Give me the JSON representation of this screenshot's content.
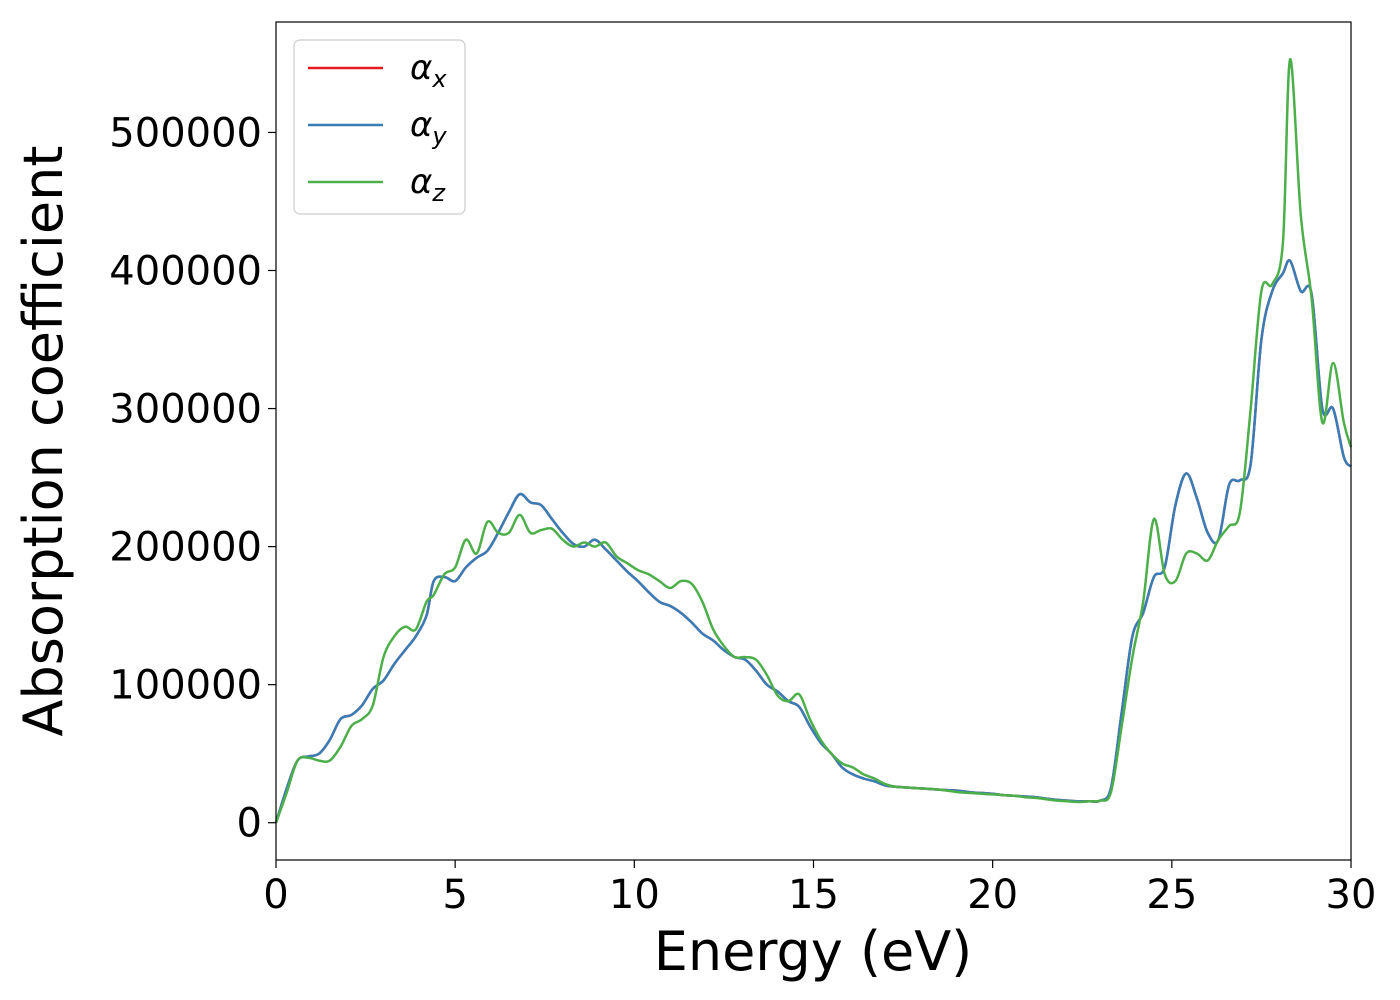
{
  "chart_data": {
    "type": "line",
    "xlabel": "Energy (eV)",
    "ylabel": "Absorption coefficient",
    "xlim": [
      0,
      30
    ],
    "ylim": [
      -27000,
      580000
    ],
    "xticks": [
      0,
      5,
      10,
      15,
      20,
      25,
      30
    ],
    "yticks": [
      0,
      100000,
      200000,
      300000,
      400000,
      500000
    ],
    "grid": false,
    "legend_position": "top-left",
    "series": [
      {
        "name": "α",
        "subscript": "x",
        "color": "#e41a1c",
        "x": [
          0,
          0.3,
          0.6,
          0.9,
          1.2,
          1.5,
          1.8,
          2.1,
          2.4,
          2.7,
          3.0,
          3.3,
          3.6,
          3.9,
          4.2,
          4.4,
          4.7,
          5.0,
          5.3,
          5.6,
          5.9,
          6.2,
          6.5,
          6.8,
          7.1,
          7.4,
          7.7,
          8.0,
          8.3,
          8.6,
          8.9,
          9.2,
          9.5,
          9.8,
          10.1,
          10.4,
          10.7,
          11.0,
          11.3,
          11.6,
          11.9,
          12.2,
          12.5,
          12.8,
          13.1,
          13.4,
          13.7,
          14.0,
          14.3,
          14.6,
          14.9,
          15.2,
          15.5,
          15.8,
          16.1,
          16.4,
          16.7,
          17.0,
          17.3,
          17.6,
          17.9,
          18.2,
          18.5,
          18.8,
          19.1,
          19.4,
          19.7,
          20.0,
          20.3,
          20.6,
          20.9,
          21.2,
          21.5,
          21.8,
          22.1,
          22.4,
          22.7,
          23.0,
          23.3,
          23.6,
          23.9,
          24.2,
          24.5,
          24.8,
          25.1,
          25.4,
          25.7,
          26.0,
          26.3,
          26.6,
          26.9,
          27.2,
          27.5,
          27.8,
          28.1,
          28.3,
          28.6,
          28.9,
          29.2,
          29.5,
          29.8,
          30.0
        ],
        "y": [
          0,
          25000,
          45000,
          48000,
          50000,
          60000,
          75000,
          78000,
          85000,
          97000,
          103000,
          115000,
          125000,
          135000,
          150000,
          175000,
          178000,
          175000,
          185000,
          192000,
          197000,
          210000,
          225000,
          238000,
          232000,
          230000,
          220000,
          210000,
          202000,
          200000,
          205000,
          198000,
          190000,
          182000,
          175000,
          167000,
          160000,
          157000,
          152000,
          145000,
          137000,
          132000,
          125000,
          120000,
          118000,
          110000,
          100000,
          95000,
          88000,
          84000,
          70000,
          58000,
          50000,
          40000,
          35000,
          32000,
          30000,
          27000,
          26000,
          25500,
          25000,
          24500,
          24000,
          23500,
          23000,
          22000,
          21500,
          21000,
          20000,
          19500,
          19000,
          18500,
          17500,
          16500,
          16000,
          15500,
          15500,
          16000,
          25000,
          80000,
          135000,
          152000,
          178000,
          185000,
          230000,
          253000,
          235000,
          210000,
          205000,
          245000,
          248000,
          260000,
          350000,
          385000,
          398000,
          407000,
          385000,
          383000,
          300000,
          300000,
          265000,
          258000
        ]
      },
      {
        "name": "α",
        "subscript": "y",
        "color": "#377eb8",
        "x": [
          0,
          0.3,
          0.6,
          0.9,
          1.2,
          1.5,
          1.8,
          2.1,
          2.4,
          2.7,
          3.0,
          3.3,
          3.6,
          3.9,
          4.2,
          4.4,
          4.7,
          5.0,
          5.3,
          5.6,
          5.9,
          6.2,
          6.5,
          6.8,
          7.1,
          7.4,
          7.7,
          8.0,
          8.3,
          8.6,
          8.9,
          9.2,
          9.5,
          9.8,
          10.1,
          10.4,
          10.7,
          11.0,
          11.3,
          11.6,
          11.9,
          12.2,
          12.5,
          12.8,
          13.1,
          13.4,
          13.7,
          14.0,
          14.3,
          14.6,
          14.9,
          15.2,
          15.5,
          15.8,
          16.1,
          16.4,
          16.7,
          17.0,
          17.3,
          17.6,
          17.9,
          18.2,
          18.5,
          18.8,
          19.1,
          19.4,
          19.7,
          20.0,
          20.3,
          20.6,
          20.9,
          21.2,
          21.5,
          21.8,
          22.1,
          22.4,
          22.7,
          23.0,
          23.3,
          23.6,
          23.9,
          24.2,
          24.5,
          24.8,
          25.1,
          25.4,
          25.7,
          26.0,
          26.3,
          26.6,
          26.9,
          27.2,
          27.5,
          27.8,
          28.1,
          28.3,
          28.6,
          28.9,
          29.2,
          29.5,
          29.8,
          30.0
        ],
        "y": [
          0,
          25000,
          45000,
          48000,
          50000,
          60000,
          75000,
          78000,
          85000,
          97000,
          103000,
          115000,
          125000,
          135000,
          150000,
          175000,
          178000,
          175000,
          185000,
          192000,
          197000,
          210000,
          225000,
          238000,
          232000,
          230000,
          220000,
          210000,
          202000,
          200000,
          205000,
          198000,
          190000,
          182000,
          175000,
          167000,
          160000,
          157000,
          152000,
          145000,
          137000,
          132000,
          125000,
          120000,
          118000,
          110000,
          100000,
          95000,
          88000,
          84000,
          70000,
          58000,
          50000,
          40000,
          35000,
          32000,
          30000,
          27000,
          26000,
          25500,
          25000,
          24500,
          24000,
          23500,
          23000,
          22000,
          21500,
          21000,
          20000,
          19500,
          19000,
          18500,
          17500,
          16500,
          16000,
          15500,
          15500,
          16000,
          25000,
          80000,
          135000,
          152000,
          178000,
          185000,
          230000,
          253000,
          235000,
          210000,
          205000,
          245000,
          248000,
          260000,
          350000,
          385000,
          398000,
          407000,
          385000,
          383000,
          300000,
          300000,
          265000,
          258000
        ]
      },
      {
        "name": "α",
        "subscript": "z",
        "color": "#4daf4a",
        "x": [
          0,
          0.3,
          0.6,
          0.9,
          1.2,
          1.5,
          1.8,
          2.1,
          2.4,
          2.7,
          3.0,
          3.3,
          3.6,
          3.9,
          4.2,
          4.4,
          4.7,
          5.0,
          5.3,
          5.6,
          5.9,
          6.2,
          6.5,
          6.8,
          7.1,
          7.4,
          7.7,
          8.0,
          8.3,
          8.6,
          8.9,
          9.2,
          9.5,
          9.8,
          10.1,
          10.4,
          10.7,
          11.0,
          11.3,
          11.6,
          11.9,
          12.2,
          12.5,
          12.8,
          13.1,
          13.4,
          13.7,
          14.0,
          14.3,
          14.6,
          14.9,
          15.2,
          15.5,
          15.8,
          16.1,
          16.4,
          16.7,
          17.0,
          17.3,
          17.6,
          17.9,
          18.2,
          18.5,
          18.8,
          19.1,
          19.4,
          19.7,
          20.0,
          20.3,
          20.6,
          20.9,
          21.2,
          21.5,
          21.8,
          22.1,
          22.4,
          22.7,
          23.0,
          23.3,
          23.6,
          23.9,
          24.2,
          24.5,
          24.8,
          25.1,
          25.4,
          25.7,
          26.0,
          26.3,
          26.6,
          26.9,
          27.2,
          27.5,
          27.8,
          28.1,
          28.3,
          28.6,
          28.9,
          29.2,
          29.5,
          29.8,
          30.0
        ],
        "y": [
          0,
          22000,
          45000,
          47000,
          45000,
          45000,
          55000,
          70000,
          75000,
          85000,
          120000,
          135000,
          142000,
          140000,
          160000,
          165000,
          180000,
          185000,
          205000,
          195000,
          218000,
          210000,
          210000,
          223000,
          210000,
          212000,
          213000,
          205000,
          200000,
          203000,
          200000,
          203000,
          193000,
          188000,
          183000,
          180000,
          175000,
          170000,
          175000,
          173000,
          160000,
          140000,
          128000,
          120000,
          120000,
          118000,
          107000,
          92000,
          88000,
          93000,
          75000,
          60000,
          50000,
          43000,
          40000,
          35000,
          32000,
          28000,
          26000,
          25500,
          25000,
          24500,
          24000,
          23000,
          22000,
          21500,
          21000,
          20500,
          20000,
          19500,
          18500,
          18000,
          17000,
          16000,
          15500,
          15000,
          15500,
          16000,
          22000,
          70000,
          120000,
          160000,
          220000,
          180000,
          175000,
          195000,
          195000,
          190000,
          205000,
          215000,
          225000,
          300000,
          385000,
          390000,
          420000,
          553000,
          440000,
          380000,
          290000,
          333000,
          290000,
          272000
        ]
      }
    ]
  }
}
